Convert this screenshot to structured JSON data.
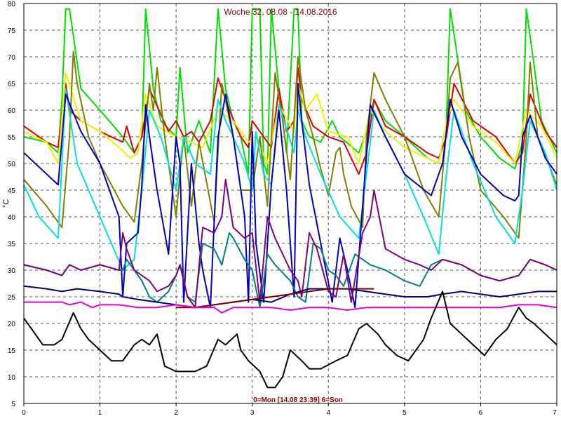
{
  "chart_data": {
    "type": "line",
    "title": "Woche 32, 08.08 - 14.08.2016",
    "footer": "0=Mon [14.08 23:39] 6=Son",
    "ylabel": "°C",
    "xlabel": "",
    "xlim": [
      0,
      7
    ],
    "ylim": [
      5,
      80
    ],
    "x_ticks": [
      "0",
      "1",
      "2",
      "3",
      "4",
      "5",
      "6",
      "7"
    ],
    "y_ticks": [
      "5",
      "10",
      "15",
      "20",
      "25",
      "30",
      "35",
      "40",
      "45",
      "50",
      "55",
      "60",
      "65",
      "70",
      "75",
      "80"
    ],
    "grid": true,
    "series": [
      {
        "color": "#00e000",
        "x": [
          0,
          0.3,
          0.45,
          0.5,
          0.55,
          0.6,
          0.75,
          1.0,
          1.3,
          1.45,
          1.55,
          1.6,
          1.7,
          1.8,
          2.0,
          2.05,
          2.15,
          2.3,
          2.45,
          2.55,
          2.65,
          2.75,
          2.85,
          2.95,
          3.0,
          3.1,
          3.15,
          3.2,
          3.25,
          3.35,
          3.45,
          3.55,
          3.6,
          3.65,
          3.75,
          3.9,
          4.05,
          4.15,
          4.4,
          4.5,
          4.6,
          4.75,
          5.0,
          5.3,
          5.45,
          5.55,
          5.6,
          5.8,
          6.0,
          6.25,
          6.45,
          6.55,
          6.6,
          6.8,
          7.0
        ],
        "y": [
          55,
          54,
          52,
          62,
          79,
          79,
          64,
          60,
          55,
          52,
          55,
          79,
          64,
          58,
          55,
          68,
          52,
          58,
          52,
          79,
          64,
          58,
          55,
          48,
          79,
          79,
          50,
          48,
          79,
          64,
          52,
          79,
          79,
          58,
          55,
          54,
          58,
          55,
          52,
          56,
          62,
          58,
          55,
          51,
          50,
          58,
          79,
          60,
          55,
          51,
          49,
          54,
          79,
          58,
          52
        ]
      },
      {
        "color": "#e00000",
        "x": [
          0,
          0.3,
          0.45,
          0.55,
          0.6,
          0.75,
          1.0,
          1.3,
          1.35,
          1.45,
          1.55,
          1.65,
          1.9,
          2.0,
          2.1,
          2.2,
          2.3,
          2.45,
          2.55,
          2.7,
          2.85,
          2.95,
          3.0,
          3.15,
          3.25,
          3.35,
          3.45,
          3.55,
          3.6,
          3.65,
          3.8,
          4.0,
          4.2,
          4.4,
          4.5,
          4.6,
          4.75,
          5.0,
          5.3,
          5.45,
          5.55,
          5.65,
          5.9,
          6.2,
          6.45,
          6.55,
          6.65,
          6.85,
          7.0
        ],
        "y": [
          57,
          54,
          53,
          65,
          60,
          58,
          56,
          54,
          57,
          52,
          55,
          64,
          56,
          58,
          55,
          56,
          54,
          58,
          66,
          60,
          55,
          53,
          58,
          55,
          53,
          64,
          56,
          58,
          68,
          62,
          57,
          55,
          54,
          48,
          52,
          62,
          57,
          55,
          52,
          51,
          55,
          65,
          58,
          55,
          50,
          52,
          63,
          56,
          53
        ]
      },
      {
        "color": "#f0f000",
        "x": [
          0,
          0.3,
          0.45,
          0.55,
          0.75,
          1.0,
          1.25,
          1.4,
          1.5,
          1.6,
          1.75,
          2.0,
          2.2,
          2.35,
          2.55,
          2.75,
          2.95,
          3.05,
          3.2,
          3.35,
          3.55,
          3.6,
          3.7,
          3.85,
          4.0,
          4.25,
          4.4,
          4.55,
          4.75,
          5.0,
          5.3,
          5.45,
          5.55,
          5.65,
          5.9,
          6.2,
          6.45,
          6.6,
          6.8,
          7.0
        ],
        "y": [
          56,
          54,
          50,
          67,
          58,
          56,
          53,
          51,
          52,
          63,
          57,
          55,
          54,
          53,
          60,
          58,
          54,
          55,
          50,
          61,
          56,
          65,
          60,
          63,
          56,
          55,
          50,
          60,
          56,
          53,
          51,
          50,
          58,
          62,
          57,
          54,
          50,
          60,
          57,
          51
        ]
      },
      {
        "color": "#808000",
        "x": [
          0,
          0.3,
          0.5,
          0.6,
          0.65,
          0.7,
          0.85,
          1.0,
          1.3,
          1.45,
          1.55,
          1.65,
          1.7,
          1.75,
          1.85,
          1.95,
          2.0,
          2.05,
          2.1,
          2.2,
          2.3,
          2.5,
          2.6,
          2.75,
          2.85,
          3.0,
          3.1,
          3.2,
          3.3,
          3.4,
          3.5,
          3.6,
          3.7,
          3.8,
          3.9,
          4.0,
          4.1,
          4.15,
          4.2,
          4.3,
          4.45,
          4.5,
          4.6,
          4.75,
          5.0,
          5.25,
          5.45,
          5.55,
          5.6,
          5.7,
          5.85,
          6.0,
          6.3,
          6.5,
          6.6,
          6.65,
          6.75,
          7.0
        ],
        "y": [
          47,
          42,
          38,
          55,
          71,
          65,
          55,
          50,
          42,
          39,
          50,
          65,
          60,
          68,
          55,
          45,
          40,
          48,
          55,
          42,
          54,
          39,
          65,
          55,
          45,
          45,
          55,
          42,
          67,
          58,
          47,
          70,
          60,
          55,
          49,
          44,
          52,
          53,
          48,
          42,
          38,
          55,
          67,
          62,
          55,
          45,
          40,
          56,
          66,
          69,
          55,
          45,
          40,
          36,
          55,
          69,
          55,
          46
        ]
      },
      {
        "color": "#00e0e0",
        "x": [
          0,
          0.2,
          0.45,
          0.55,
          0.7,
          1.0,
          1.3,
          1.45,
          1.55,
          1.65,
          1.8,
          2.0,
          2.1,
          2.25,
          2.45,
          2.55,
          2.65,
          2.75,
          2.9,
          3.0,
          3.05,
          3.15,
          3.25,
          3.35,
          3.55,
          3.6,
          3.7,
          3.9,
          4.15,
          4.4,
          4.5,
          4.6,
          4.75,
          5.0,
          5.25,
          5.45,
          5.55,
          5.65,
          5.9,
          6.2,
          6.45,
          6.55,
          6.65,
          6.85,
          7.0
        ],
        "y": [
          46,
          40,
          36,
          64,
          50,
          40,
          30,
          32,
          45,
          60,
          55,
          45,
          55,
          50,
          48,
          62,
          58,
          55,
          50,
          45,
          56,
          48,
          46,
          61,
          52,
          60,
          55,
          48,
          40,
          36,
          48,
          60,
          55,
          48,
          40,
          33,
          48,
          60,
          50,
          40,
          35,
          45,
          58,
          52,
          45
        ]
      },
      {
        "color": "#0000c0",
        "x": [
          0,
          0.3,
          0.45,
          0.55,
          0.75,
          1.0,
          1.25,
          1.3,
          1.35,
          1.5,
          1.55,
          1.6,
          1.65,
          1.75,
          1.9,
          2.0,
          2.05,
          2.1,
          2.2,
          2.3,
          2.35,
          2.45,
          2.55,
          2.65,
          2.75,
          2.9,
          2.95,
          3.0,
          3.05,
          3.15,
          3.25,
          3.35,
          3.45,
          3.55,
          3.6,
          3.65,
          3.75,
          3.9,
          4.05,
          4.15,
          4.25,
          4.35,
          4.45,
          4.55,
          4.75,
          5.0,
          5.35,
          5.5,
          5.6,
          5.75,
          6.0,
          6.3,
          6.45,
          6.5,
          6.55,
          6.65,
          6.85,
          7.0
        ],
        "y": [
          52,
          48,
          46,
          63,
          56,
          50,
          40,
          25,
          35,
          37,
          46,
          61,
          55,
          45,
          33,
          55,
          50,
          24,
          50,
          35,
          30,
          23,
          55,
          63,
          55,
          40,
          24,
          56,
          35,
          24,
          46,
          60,
          45,
          25,
          65,
          58,
          46,
          35,
          24,
          36,
          30,
          23,
          42,
          61,
          55,
          48,
          44,
          50,
          62,
          55,
          48,
          44,
          43,
          44,
          55,
          59,
          51,
          48
        ]
      },
      {
        "color": "#008080",
        "x": [
          0,
          0.3,
          0.5,
          0.6,
          0.75,
          1.0,
          1.25,
          1.3,
          1.35,
          1.45,
          1.55,
          1.65,
          1.75,
          1.9,
          2.0,
          2.05,
          2.15,
          2.25,
          2.35,
          2.5,
          2.6,
          2.7,
          2.75,
          2.9,
          3.0,
          3.1,
          3.2,
          3.3,
          3.5,
          3.6,
          3.7,
          3.8,
          3.9,
          4.0,
          4.1,
          4.2,
          4.35,
          4.45,
          4.55,
          4.75,
          5.0,
          5.2,
          5.35,
          5.5,
          5.75,
          6.0,
          6.25,
          6.5,
          6.65,
          6.85,
          7.0
        ],
        "y": [
          31,
          30,
          29,
          31,
          30,
          31,
          30,
          30,
          32,
          30,
          28,
          25,
          24,
          26,
          29,
          31,
          25,
          24,
          35,
          34,
          31,
          37,
          36,
          32,
          30,
          23,
          33,
          31,
          28,
          25,
          24,
          35,
          34,
          30,
          29,
          27,
          33,
          32,
          31,
          30,
          28,
          27,
          31,
          32,
          31,
          29,
          28,
          29,
          32,
          31,
          30
        ]
      },
      {
        "color": "#800080",
        "x": [
          0,
          0.3,
          0.5,
          0.6,
          0.75,
          1.0,
          1.25,
          1.3,
          1.35,
          1.45,
          1.55,
          1.65,
          1.75,
          1.9,
          2.0,
          2.05,
          2.15,
          2.25,
          2.35,
          2.5,
          2.6,
          2.65,
          2.75,
          2.9,
          3.0,
          3.1,
          3.2,
          3.3,
          3.5,
          3.6,
          3.65,
          3.75,
          3.85,
          4.0,
          4.1,
          4.2,
          4.3,
          4.45,
          4.55,
          4.6,
          4.75,
          5.0,
          5.2,
          5.35,
          5.5,
          5.75,
          6.0,
          6.25,
          6.5,
          6.65,
          6.85,
          7.0
        ],
        "y": [
          31,
          30,
          29,
          31,
          30,
          31,
          30,
          37,
          34,
          30,
          29,
          28,
          26,
          27,
          29,
          31,
          25,
          23,
          38,
          37,
          40,
          47,
          38,
          36,
          37,
          24,
          40,
          36,
          30,
          28,
          25,
          37,
          34,
          26,
          25,
          33,
          24,
          37,
          40,
          45,
          34,
          32,
          31,
          30,
          32,
          31,
          29,
          28,
          29,
          32,
          31,
          30
        ]
      },
      {
        "color": "#000080",
        "x": [
          0,
          0.3,
          0.5,
          0.7,
          1.0,
          1.25,
          1.3,
          1.5,
          1.75,
          2.0,
          2.25,
          2.5,
          2.75,
          3.0,
          3.25,
          3.5,
          3.75,
          4.0,
          4.25,
          4.5,
          4.75,
          5.0,
          5.3,
          5.5,
          5.75,
          6.0,
          6.25,
          6.5,
          6.75,
          7.0
        ],
        "y": [
          27,
          26.5,
          26,
          26.5,
          26,
          25.5,
          25,
          24.5,
          24,
          23.5,
          23,
          23.5,
          24,
          24.5,
          24,
          25.5,
          26.5,
          26.5,
          26.5,
          26,
          25.5,
          25,
          25,
          25.5,
          26,
          25.5,
          25,
          25.5,
          26,
          26
        ]
      },
      {
        "color": "#800000",
        "x": [
          2.0,
          2.25,
          2.5,
          2.75,
          3.0,
          3.25,
          3.5,
          3.75,
          4.0,
          4.25,
          4.5,
          4.6
        ],
        "y": [
          23,
          23,
          23.5,
          24,
          24.5,
          25,
          25.5,
          26,
          26.5,
          26.5,
          26.5,
          26.5
        ]
      },
      {
        "color": "#e000e0",
        "x": [
          0,
          0.3,
          0.5,
          0.6,
          0.75,
          0.9,
          1.0,
          1.25,
          1.5,
          1.75,
          2.0,
          2.25,
          2.5,
          2.6,
          2.75,
          3.0,
          3.25,
          3.5,
          3.75,
          4.0,
          4.25,
          4.5,
          4.75,
          5.0,
          5.25,
          5.5,
          5.75,
          6.0,
          6.25,
          6.5,
          6.75,
          7.0
        ],
        "y": [
          24,
          24,
          24,
          23.5,
          24,
          23,
          23.5,
          23.5,
          23,
          23,
          23.5,
          23,
          23,
          22,
          23,
          23,
          23,
          22.5,
          23,
          23,
          22.5,
          23,
          23,
          23,
          23,
          23,
          23,
          23,
          23,
          23.5,
          23.5,
          23
        ]
      },
      {
        "color": "#000000",
        "x": [
          0,
          0.1,
          0.25,
          0.4,
          0.5,
          0.65,
          0.75,
          0.85,
          1.0,
          1.15,
          1.3,
          1.45,
          1.55,
          1.65,
          1.75,
          1.85,
          2.0,
          2.25,
          2.4,
          2.55,
          2.65,
          2.8,
          2.85,
          2.95,
          3.1,
          3.2,
          3.3,
          3.4,
          3.5,
          3.65,
          3.75,
          3.9,
          4.1,
          4.25,
          4.4,
          4.5,
          4.65,
          4.75,
          4.9,
          5.05,
          5.25,
          5.35,
          5.5,
          5.6,
          5.75,
          5.9,
          6.05,
          6.2,
          6.35,
          6.5,
          6.6,
          6.7,
          6.85,
          7.0
        ],
        "y": [
          21,
          19,
          16,
          16,
          17,
          22,
          19,
          17,
          15,
          13,
          13,
          16,
          17,
          16,
          18,
          12,
          11,
          11,
          12,
          17,
          16,
          18,
          15,
          13,
          11,
          8,
          8,
          10,
          15,
          13,
          11.5,
          11.5,
          13,
          14,
          19,
          20,
          18,
          16,
          14,
          13,
          17,
          21,
          26,
          20,
          18,
          16,
          14,
          17,
          19,
          23,
          21,
          20,
          18,
          16
        ]
      }
    ]
  }
}
